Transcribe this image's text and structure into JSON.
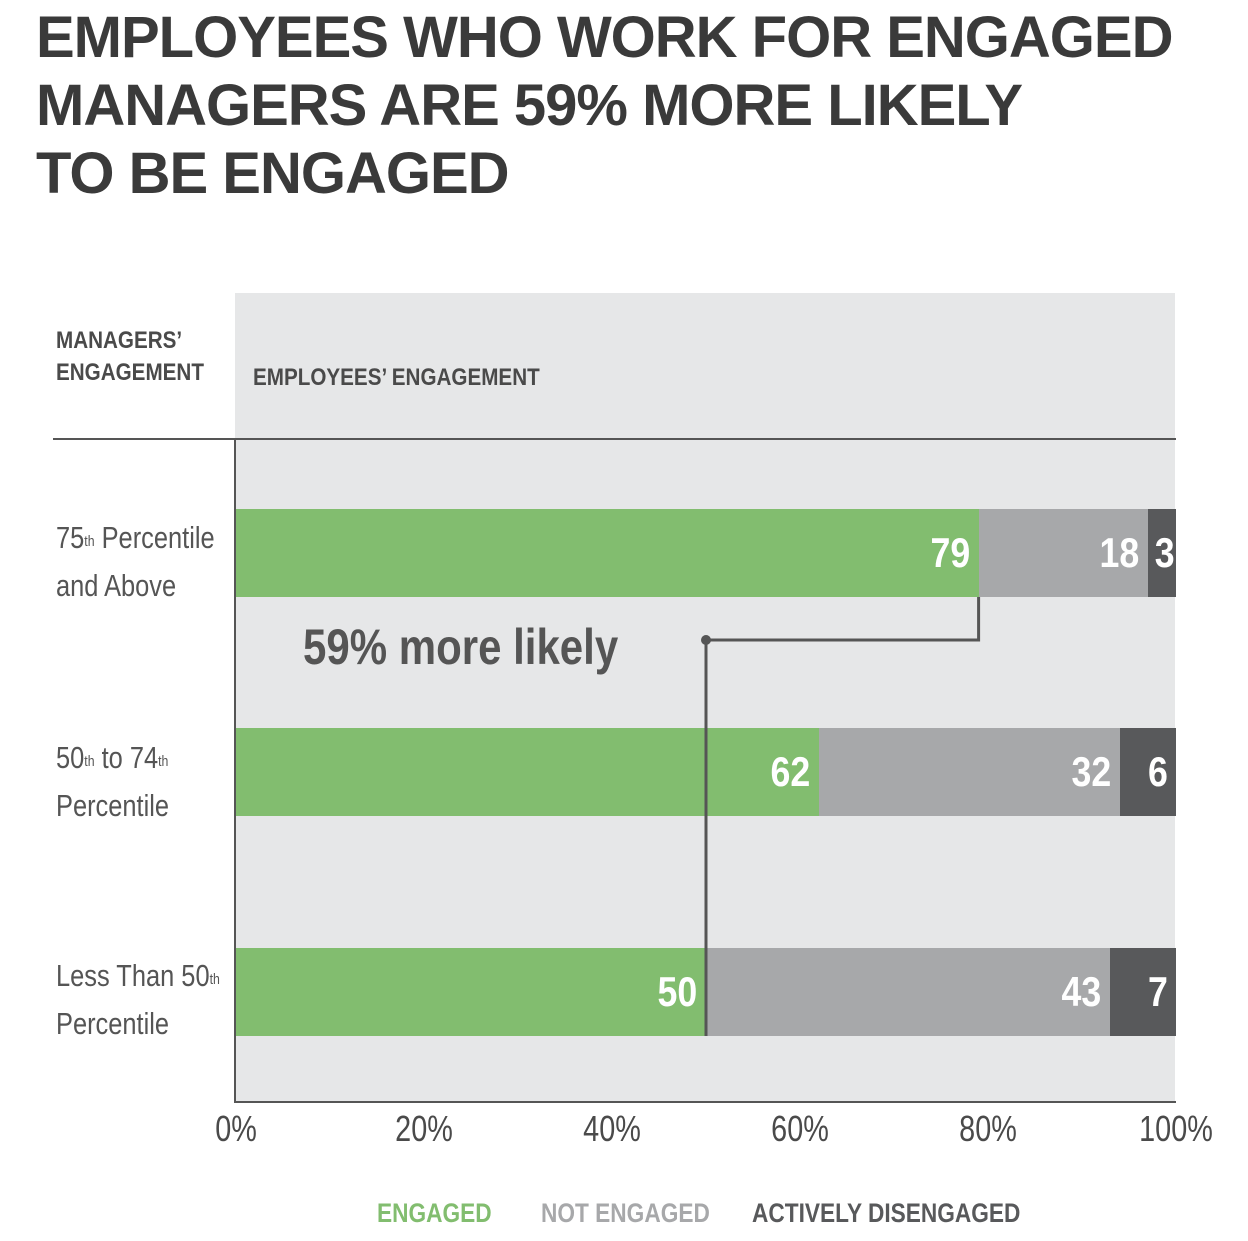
{
  "title_lines": [
    "EMPLOYEES WHO WORK FOR ENGAGED",
    "MANAGERS ARE 59% MORE LIKELY",
    "TO BE ENGAGED"
  ],
  "header": {
    "managers_line1": "MANAGERS’",
    "managers_line2": "ENGAGEMENT",
    "employees": "EMPLOYEES’ ENGAGEMENT"
  },
  "colors": {
    "engaged": "#82bd6f",
    "not_engaged": "#a7a8aa",
    "actively_disengaged": "#58595b",
    "panel": "#e6e7e8"
  },
  "annotation": "59% more likely",
  "chart_data": {
    "type": "bar",
    "orientation": "horizontal",
    "stacked": true,
    "categories": [
      {
        "line1_prefix": "75",
        "line1_sup": "th",
        "line1_suffix": " Percentile",
        "line2": "and Above"
      },
      {
        "line1_prefix": "50",
        "line1_sup": "th",
        "line1_mid": " to 74",
        "line1_sup2": "th",
        "line2": "Percentile"
      },
      {
        "line1_prefix": "Less Than 50",
        "line1_sup": "th",
        "line2": "Percentile"
      }
    ],
    "series": [
      {
        "name": "ENGAGED",
        "values": [
          79,
          62,
          50
        ]
      },
      {
        "name": "NOT ENGAGED",
        "values": [
          18,
          32,
          43
        ]
      },
      {
        "name": "ACTIVELY DISENGAGED",
        "values": [
          3,
          6,
          7
        ]
      }
    ],
    "xlim": [
      0,
      100
    ],
    "xticks": [
      "0%",
      "20%",
      "40%",
      "60%",
      "80%",
      "100%"
    ],
    "legend_position": "bottom"
  }
}
